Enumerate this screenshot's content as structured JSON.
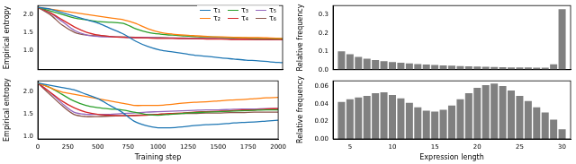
{
  "chart_data": [
    {
      "type": "line",
      "y_label": "Empirical entropy",
      "x": [
        0,
        100,
        200,
        300,
        400,
        500,
        600,
        700,
        800,
        900,
        1000,
        1100,
        1200,
        1300,
        1400,
        1500,
        1600,
        1700,
        1800,
        1900,
        2000
      ],
      "xlim": [
        0,
        2000
      ],
      "xticks": [
        0,
        250,
        500,
        750,
        1000,
        1250,
        1500,
        1750,
        2000
      ],
      "ylim": [
        0.45,
        2.25
      ],
      "yticks": [
        {
          "value": 1,
          "label": "1.0"
        },
        {
          "value": 1.5,
          "label": "1.5"
        },
        {
          "value": 2,
          "label": "2.0"
        }
      ],
      "grid": false,
      "legend": "upper right",
      "tick_labels": "y",
      "series": [
        {
          "name": "τ₁",
          "color": "#1f77b4",
          "values": [
            2.2,
            2.15,
            2.05,
            1.95,
            1.85,
            1.75,
            1.6,
            1.45,
            1.25,
            1.1,
            1.0,
            0.95,
            0.9,
            0.85,
            0.82,
            0.78,
            0.75,
            0.72,
            0.7,
            0.67,
            0.65
          ]
        },
        {
          "name": "τ₂",
          "color": "#ff7f0e",
          "values": [
            2.2,
            2.15,
            2.1,
            2.05,
            2.0,
            1.95,
            1.9,
            1.85,
            1.75,
            1.6,
            1.5,
            1.45,
            1.42,
            1.4,
            1.38,
            1.37,
            1.36,
            1.35,
            1.35,
            1.34,
            1.33
          ]
        },
        {
          "name": "τ₃",
          "color": "#2ca02c",
          "values": [
            2.2,
            2.1,
            2.0,
            1.9,
            1.85,
            1.8,
            1.78,
            1.75,
            1.6,
            1.5,
            1.45,
            1.42,
            1.4,
            1.38,
            1.37,
            1.36,
            1.35,
            1.34,
            1.33,
            1.33,
            1.32
          ]
        },
        {
          "name": "τ₄",
          "color": "#d62728",
          "values": [
            2.2,
            2.05,
            1.85,
            1.65,
            1.5,
            1.42,
            1.38,
            1.36,
            1.35,
            1.34,
            1.33,
            1.33,
            1.32,
            1.32,
            1.31,
            1.31,
            1.3,
            1.3,
            1.3,
            1.3,
            1.3
          ]
        },
        {
          "name": "τ₅",
          "color": "#9467bd",
          "values": [
            2.2,
            2.05,
            1.8,
            1.55,
            1.42,
            1.38,
            1.37,
            1.36,
            1.35,
            1.35,
            1.34,
            1.34,
            1.33,
            1.33,
            1.32,
            1.32,
            1.31,
            1.31,
            1.3,
            1.3,
            1.3
          ]
        },
        {
          "name": "τ₆",
          "color": "#8c564b",
          "values": [
            2.2,
            2.0,
            1.7,
            1.5,
            1.42,
            1.4,
            1.38,
            1.37,
            1.36,
            1.35,
            1.35,
            1.34,
            1.34,
            1.33,
            1.33,
            1.32,
            1.32,
            1.31,
            1.31,
            1.3,
            1.3
          ]
        }
      ]
    },
    {
      "type": "line",
      "y_label": "Empirical entropy",
      "x_label": "Training step",
      "x": [
        0,
        100,
        200,
        300,
        400,
        500,
        600,
        700,
        800,
        900,
        1000,
        1100,
        1200,
        1300,
        1400,
        1500,
        1600,
        1700,
        1800,
        1900,
        2000
      ],
      "xlim": [
        0,
        2000
      ],
      "xticks": [
        0,
        250,
        500,
        750,
        1000,
        1250,
        1500,
        1750,
        2000
      ],
      "ylim": [
        0.95,
        2.25
      ],
      "yticks": [
        {
          "value": 1,
          "label": "1.0"
        },
        {
          "value": 1.5,
          "label": "1.5"
        },
        {
          "value": 2,
          "label": "2.0"
        }
      ],
      "grid": false,
      "series": [
        {
          "color": "#1f77b4",
          "values": [
            2.2,
            2.15,
            2.1,
            2.05,
            1.95,
            1.85,
            1.7,
            1.55,
            1.35,
            1.25,
            1.2,
            1.2,
            1.22,
            1.25,
            1.27,
            1.28,
            1.3,
            1.32,
            1.33,
            1.35,
            1.37
          ]
        },
        {
          "color": "#ff7f0e",
          "values": [
            2.2,
            2.1,
            2.0,
            1.95,
            1.9,
            1.85,
            1.8,
            1.75,
            1.7,
            1.7,
            1.7,
            1.72,
            1.75,
            1.77,
            1.78,
            1.8,
            1.82,
            1.83,
            1.85,
            1.87,
            1.88
          ]
        },
        {
          "color": "#2ca02c",
          "values": [
            2.2,
            2.1,
            1.95,
            1.8,
            1.7,
            1.65,
            1.62,
            1.6,
            1.55,
            1.5,
            1.48,
            1.5,
            1.52,
            1.54,
            1.55,
            1.56,
            1.57,
            1.58,
            1.59,
            1.6,
            1.6
          ]
        },
        {
          "color": "#d62728",
          "values": [
            2.2,
            2.0,
            1.8,
            1.65,
            1.55,
            1.5,
            1.48,
            1.47,
            1.47,
            1.48,
            1.5,
            1.52,
            1.53,
            1.55,
            1.56,
            1.57,
            1.58,
            1.6,
            1.6,
            1.62,
            1.63
          ]
        },
        {
          "color": "#9467bd",
          "values": [
            2.2,
            2.0,
            1.75,
            1.55,
            1.5,
            1.5,
            1.5,
            1.52,
            1.53,
            1.55,
            1.56,
            1.57,
            1.58,
            1.59,
            1.6,
            1.6,
            1.61,
            1.62,
            1.62,
            1.63,
            1.63
          ]
        },
        {
          "color": "#8c564b",
          "values": [
            2.2,
            1.95,
            1.7,
            1.5,
            1.45,
            1.45,
            1.46,
            1.47,
            1.48,
            1.49,
            1.5,
            1.51,
            1.52,
            1.52,
            1.53,
            1.53,
            1.54,
            1.54,
            1.55,
            1.55,
            1.55
          ]
        }
      ]
    },
    {
      "type": "histogram",
      "y_label": "Relative frequency",
      "color": "#808080",
      "bins": [
        3.5,
        4.5,
        5.5,
        6.5,
        7.5,
        8.5,
        9.5,
        10.5,
        11.5,
        12.5,
        13.5,
        14.5,
        15.5,
        16.5,
        17.5,
        18.5,
        19.5,
        20.5,
        21.5,
        22.5,
        23.5,
        24.5,
        25.5,
        26.5,
        27.5,
        28.5,
        29.5,
        30.5
      ],
      "values": [
        0.1,
        0.085,
        0.07,
        0.06,
        0.053,
        0.047,
        0.042,
        0.038,
        0.034,
        0.031,
        0.028,
        0.026,
        0.024,
        0.022,
        0.02,
        0.019,
        0.017,
        0.016,
        0.015,
        0.014,
        0.013,
        0.012,
        0.012,
        0.011,
        0.011,
        0.03,
        0.33
      ],
      "xlim": [
        3,
        31
      ],
      "xticks": [
        5,
        10,
        15,
        20,
        25,
        30
      ],
      "ylim": [
        0,
        0.35
      ],
      "yticks": [
        {
          "value": 0,
          "label": "0.0"
        },
        {
          "value": 0.1,
          "label": "0.1"
        },
        {
          "value": 0.2,
          "label": "0.2"
        },
        {
          "value": 0.3,
          "label": "0.3"
        }
      ],
      "grid": false,
      "tick_labels": "y"
    },
    {
      "type": "histogram",
      "y_label": "Relative frequency",
      "x_label": "Expression length",
      "color": "#808080",
      "bins": [
        3.5,
        4.5,
        5.5,
        6.5,
        7.5,
        8.5,
        9.5,
        10.5,
        11.5,
        12.5,
        13.5,
        14.5,
        15.5,
        16.5,
        17.5,
        18.5,
        19.5,
        20.5,
        21.5,
        22.5,
        23.5,
        24.5,
        25.5,
        26.5,
        27.5,
        28.5,
        29.5,
        30.5
      ],
      "values": [
        0.042,
        0.045,
        0.047,
        0.049,
        0.052,
        0.053,
        0.05,
        0.046,
        0.041,
        0.036,
        0.032,
        0.031,
        0.033,
        0.038,
        0.045,
        0.052,
        0.058,
        0.061,
        0.063,
        0.06,
        0.055,
        0.049,
        0.043,
        0.036,
        0.03,
        0.022,
        0.011
      ],
      "xlim": [
        3,
        31
      ],
      "xticks": [
        5,
        10,
        15,
        20,
        25,
        30
      ],
      "ylim": [
        0,
        0.066
      ],
      "yticks": [
        {
          "value": 0,
          "label": "0.00"
        },
        {
          "value": 0.02,
          "label": "0.02"
        },
        {
          "value": 0.04,
          "label": "0.04"
        },
        {
          "value": 0.06,
          "label": "0.06"
        }
      ],
      "grid": false
    }
  ]
}
